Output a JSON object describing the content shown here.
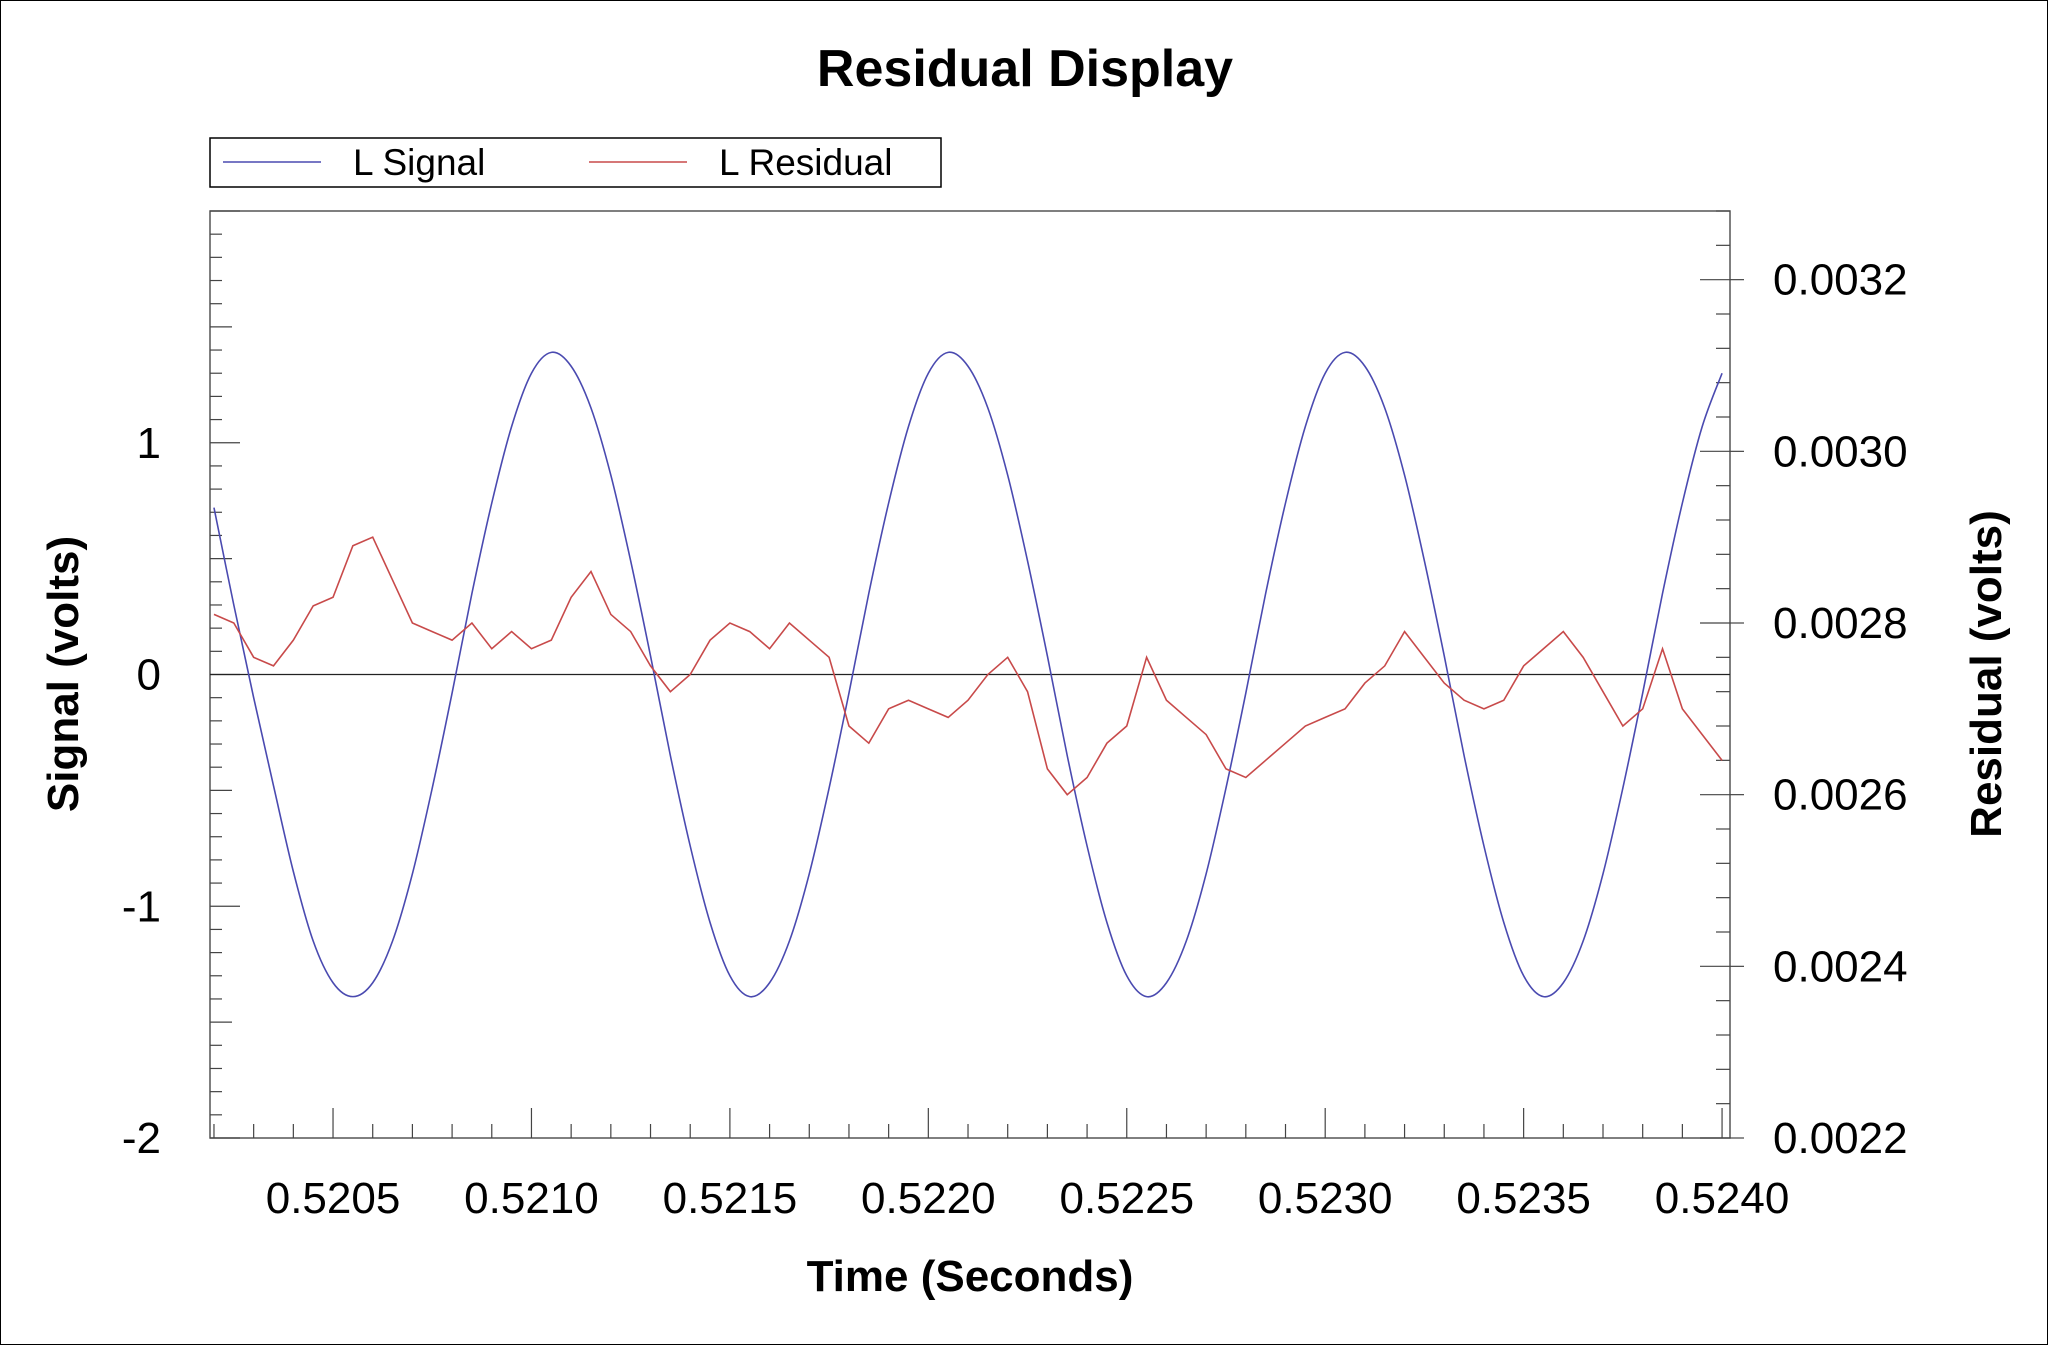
{
  "chart_data": {
    "type": "line",
    "title": "Residual Display",
    "xlabel": "Time (Seconds)",
    "ylabel_left": "Signal (volts)",
    "ylabel_right": "Residual (volts)",
    "xlim": [
      0.52019,
      0.52402
    ],
    "ylim_left": [
      -2,
      2
    ],
    "ylim_right": [
      0.0022,
      0.00328
    ],
    "x_ticks": [
      0.5205,
      0.521,
      0.5215,
      0.522,
      0.5225,
      0.523,
      0.5235,
      0.524
    ],
    "x_tick_labels": [
      "0.5205",
      "0.5210",
      "0.5215",
      "0.5220",
      "0.5225",
      "0.5230",
      "0.5235",
      "0.5240"
    ],
    "y_left_ticks": [
      -2,
      -1,
      0,
      1
    ],
    "y_left_tick_labels": [
      "-2",
      "-1",
      "0",
      "1"
    ],
    "y_right_ticks": [
      0.0022,
      0.0024,
      0.0026,
      0.0028,
      0.003,
      0.0032
    ],
    "y_right_tick_labels": [
      "0.0022",
      "0.0024",
      "0.0026",
      "0.0028",
      "0.0030",
      "0.0032"
    ],
    "zero_line": true,
    "legend": {
      "placement": "top-left, above plot",
      "entries": [
        "L Signal",
        "L Residual"
      ]
    },
    "series": [
      {
        "name": "L Signal",
        "axis": "left",
        "color": "#4a4ab0",
        "x": [
          0.5202,
          0.52025,
          0.5203,
          0.52035,
          0.5204,
          0.52045,
          0.5205,
          0.52055,
          0.5206,
          0.52065,
          0.5207,
          0.52075,
          0.5208,
          0.52085,
          0.5209,
          0.52095,
          0.521,
          0.52105,
          0.5211,
          0.52115,
          0.5212,
          0.52125,
          0.5213,
          0.52135,
          0.5214,
          0.52145,
          0.5215,
          0.52155,
          0.5216,
          0.52165,
          0.5217,
          0.52175,
          0.5218,
          0.52185,
          0.5219,
          0.52195,
          0.522,
          0.52205,
          0.5221,
          0.52215,
          0.5222,
          0.52225,
          0.5223,
          0.52235,
          0.5224,
          0.52245,
          0.5225,
          0.52255,
          0.5226,
          0.52265,
          0.5227,
          0.52275,
          0.5228,
          0.52285,
          0.5229,
          0.52295,
          0.523,
          0.52305,
          0.5231,
          0.52315,
          0.5232,
          0.52325,
          0.5233,
          0.52335,
          0.5234,
          0.52345,
          0.5235,
          0.52355,
          0.5236,
          0.52365,
          0.5237,
          0.52375,
          0.5238,
          0.52385,
          0.5239,
          0.52395,
          0.524
        ],
        "y": [
          0.72,
          0.3,
          -0.1,
          -0.48,
          -0.85,
          -1.15,
          -1.33,
          -1.39,
          -1.33,
          -1.15,
          -0.86,
          -0.49,
          -0.08,
          0.35,
          0.74,
          1.07,
          1.3,
          1.39,
          1.33,
          1.15,
          0.86,
          0.49,
          0.08,
          -0.35,
          -0.74,
          -1.07,
          -1.3,
          -1.39,
          -1.33,
          -1.15,
          -0.86,
          -0.49,
          -0.08,
          0.35,
          0.74,
          1.07,
          1.3,
          1.39,
          1.33,
          1.15,
          0.86,
          0.49,
          0.08,
          -0.35,
          -0.74,
          -1.07,
          -1.3,
          -1.39,
          -1.33,
          -1.15,
          -0.86,
          -0.49,
          -0.08,
          0.35,
          0.74,
          1.07,
          1.3,
          1.39,
          1.33,
          1.15,
          0.86,
          0.49,
          0.08,
          -0.35,
          -0.74,
          -1.07,
          -1.3,
          -1.39,
          -1.33,
          -1.15,
          -0.86,
          -0.49,
          -0.08,
          0.35,
          0.74,
          1.07,
          1.3
        ]
      },
      {
        "name": "L Residual",
        "axis": "right",
        "color": "#c84a4a",
        "x": [
          0.5202,
          0.52025,
          0.5203,
          0.52035,
          0.5204,
          0.52045,
          0.5205,
          0.52055,
          0.5206,
          0.52065,
          0.5207,
          0.52075,
          0.5208,
          0.52085,
          0.5209,
          0.52095,
          0.521,
          0.52105,
          0.5211,
          0.52115,
          0.5212,
          0.52125,
          0.5213,
          0.52135,
          0.5214,
          0.52145,
          0.5215,
          0.52155,
          0.5216,
          0.52165,
          0.5217,
          0.52175,
          0.5218,
          0.52185,
          0.5219,
          0.52195,
          0.522,
          0.52205,
          0.5221,
          0.52215,
          0.5222,
          0.52225,
          0.5223,
          0.52235,
          0.5224,
          0.52245,
          0.5225,
          0.52255,
          0.5226,
          0.52265,
          0.5227,
          0.52275,
          0.5228,
          0.52285,
          0.5229,
          0.52295,
          0.523,
          0.52305,
          0.5231,
          0.52315,
          0.5232,
          0.52325,
          0.5233,
          0.52335,
          0.5234,
          0.52345,
          0.5235,
          0.52355,
          0.5236,
          0.52365,
          0.5237,
          0.52375,
          0.5238,
          0.52385,
          0.5239,
          0.52395,
          0.524
        ],
        "y": [
          0.00281,
          0.0028,
          0.00276,
          0.00275,
          0.00278,
          0.00282,
          0.00283,
          0.00289,
          0.0029,
          0.00285,
          0.0028,
          0.00279,
          0.00278,
          0.0028,
          0.00277,
          0.00279,
          0.00277,
          0.00278,
          0.00283,
          0.00286,
          0.00281,
          0.00279,
          0.00275,
          0.00272,
          0.00274,
          0.00278,
          0.0028,
          0.00279,
          0.00277,
          0.0028,
          0.00278,
          0.00276,
          0.00268,
          0.00266,
          0.0027,
          0.00271,
          0.0027,
          0.00269,
          0.00271,
          0.00274,
          0.00276,
          0.00272,
          0.00263,
          0.0026,
          0.00262,
          0.00266,
          0.00268,
          0.00276,
          0.00271,
          0.00269,
          0.00267,
          0.00263,
          0.00262,
          0.00264,
          0.00266,
          0.00268,
          0.00269,
          0.0027,
          0.00273,
          0.00275,
          0.00279,
          0.00276,
          0.00273,
          0.00271,
          0.0027,
          0.00271,
          0.00275,
          0.00277,
          0.00279,
          0.00276,
          0.00272,
          0.00268,
          0.0027,
          0.00277,
          0.0027,
          0.00267,
          0.00264
        ]
      }
    ]
  }
}
